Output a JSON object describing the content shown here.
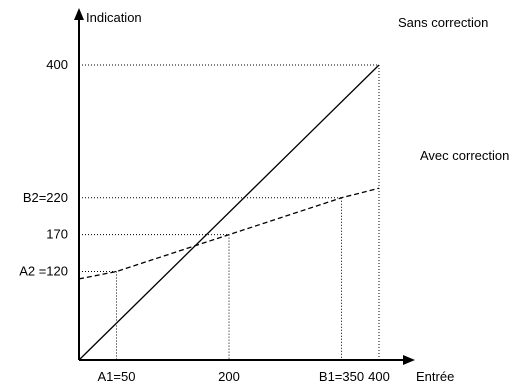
{
  "chart_data": {
    "type": "line",
    "xlabel": "Entrée",
    "ylabel": "Indication",
    "xlim": [
      0,
      400
    ],
    "ylim": [
      0,
      400
    ],
    "grid": false,
    "series": [
      {
        "name": "Sans correction",
        "style": "solid",
        "x": [
          0,
          400
        ],
        "y": [
          0,
          400
        ]
      },
      {
        "name": "Avec correction",
        "style": "dashed",
        "x": [
          0,
          50,
          350,
          400
        ],
        "y": [
          110,
          120,
          220,
          233
        ]
      }
    ],
    "x_ticks": [
      {
        "value": 50,
        "label": "A1=50"
      },
      {
        "value": 200,
        "label": "200"
      },
      {
        "value": 350,
        "label": "B1=350"
      },
      {
        "value": 400,
        "label": "400"
      }
    ],
    "y_ticks": [
      {
        "value": 120,
        "label": "A2 =120"
      },
      {
        "value": 170,
        "label": "170"
      },
      {
        "value": 220,
        "label": "B2=220"
      },
      {
        "value": 400,
        "label": "400"
      }
    ],
    "reference_points": [
      {
        "x": 50,
        "y": 120
      },
      {
        "x": 200,
        "y": 170
      },
      {
        "x": 350,
        "y": 220
      },
      {
        "x": 400,
        "y": 400
      }
    ],
    "colors": {
      "ink": "#000000",
      "background": "#ffffff"
    }
  }
}
